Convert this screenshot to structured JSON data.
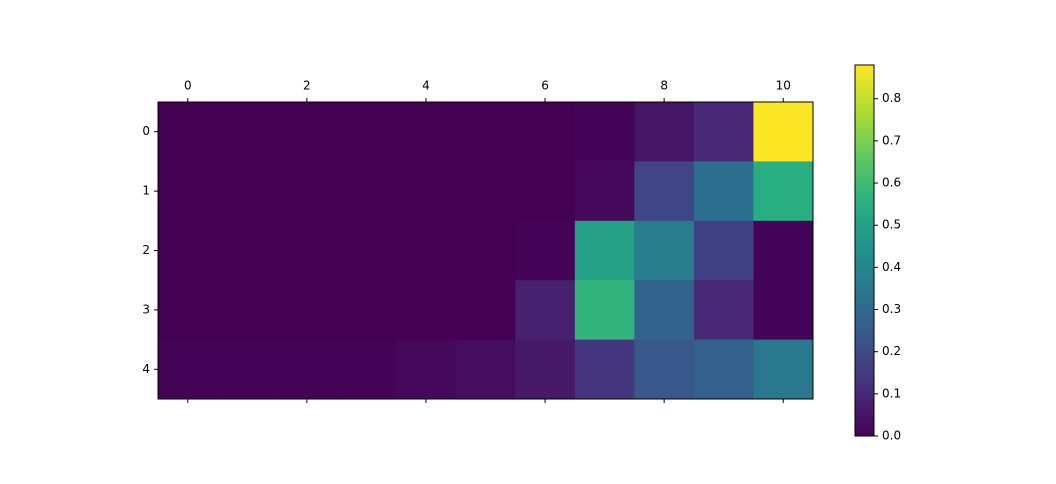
{
  "chart_data": {
    "type": "heatmap",
    "colormap": "viridis",
    "values": [
      [
        0,
        0,
        0,
        0,
        0,
        0,
        0,
        0.01,
        0.05,
        0.1,
        0.88
      ],
      [
        0,
        0,
        0,
        0,
        0,
        0,
        0,
        0.02,
        0.18,
        0.32,
        0.55
      ],
      [
        0,
        0,
        0,
        0,
        0,
        0,
        0.005,
        0.5,
        0.37,
        0.17,
        0.01
      ],
      [
        0,
        0,
        0,
        0,
        0,
        0,
        0.08,
        0.57,
        0.28,
        0.1,
        0.01
      ],
      [
        0.005,
        0.005,
        0.005,
        0.005,
        0.02,
        0.03,
        0.06,
        0.14,
        0.24,
        0.27,
        0.35
      ]
    ],
    "xlim": [
      -0.5,
      10.5
    ],
    "xticks": [
      0,
      2,
      4,
      6,
      8,
      10
    ],
    "ylim": [
      4.5,
      -0.5
    ],
    "yticks": [
      0,
      1,
      2,
      3,
      4
    ],
    "clim": [
      0,
      0.88
    ],
    "cticks": [
      {
        "value": 0,
        "label": "0.0"
      },
      0.1,
      0.2,
      0.3,
      0.4,
      0.5,
      0.6,
      0.7,
      0.8
    ]
  }
}
